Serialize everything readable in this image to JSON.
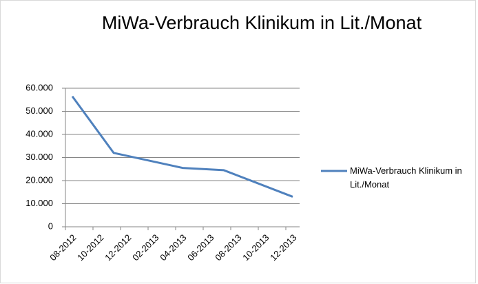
{
  "chart_data": {
    "type": "line",
    "title": "MiWa-Verbrauch Klinikum in Lit./Monat",
    "categories": [
      "08-2012",
      "10-2012",
      "12-2012",
      "02-2013",
      "04-2013",
      "06-2013",
      "08-2013",
      "10-2013",
      "12-2013"
    ],
    "series": [
      {
        "name": "MiWa-Verbrauch Klinikum in Lit./Monat",
        "color": "#4f81bd",
        "x": [
          "08-2012",
          "11-2012",
          "04-2013",
          "07-2013",
          "12-2013"
        ],
        "values": [
          56500,
          32000,
          25500,
          24500,
          13000
        ]
      }
    ],
    "ylim": [
      0,
      60000
    ],
    "yticks": [
      0,
      {
        "value": 10000,
        "label": "10.000"
      },
      {
        "value": 20000,
        "label": "20.000"
      },
      {
        "value": 30000,
        "label": "30.000"
      },
      {
        "value": 40000,
        "label": "40.000"
      },
      {
        "value": 50000,
        "label": "50.000"
      },
      {
        "value": 60000,
        "label": "60.000"
      }
    ],
    "grid": true,
    "legend": "right"
  }
}
